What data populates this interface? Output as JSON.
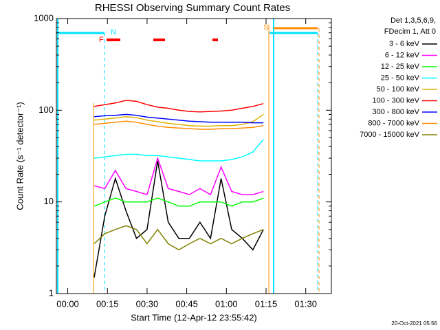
{
  "chart_data": {
    "type": "line",
    "title": "RHESSI Observing Summary Count Rates",
    "x_label": "Start Time (12-Apr-12 23:55:42)",
    "y_label": "Count Rate (s⁻¹ detector⁻¹)",
    "legend_header": [
      "Det 1,3,5,6,9,",
      "FDecim 1, Att 0"
    ],
    "flag_labels": [
      "N",
      "F",
      "S"
    ],
    "timestamp": "20-Oct-2021 05:56",
    "log_y": true,
    "legend": "right",
    "xlim": [
      -4.3,
      99.7
    ],
    "xticks": [
      {
        "value": 0,
        "label": "00:00"
      },
      {
        "value": 15,
        "label": "00:15"
      },
      {
        "value": 30,
        "label": "00:30"
      },
      {
        "value": 45,
        "label": "00:45"
      },
      {
        "value": 60,
        "label": "01:00"
      },
      {
        "value": 75,
        "label": "01:15"
      },
      {
        "value": 90,
        "label": "01:30"
      }
    ],
    "ylim": [
      1,
      1000
    ],
    "yticks": [
      1,
      10,
      100,
      1000
    ],
    "x": [
      10,
      14,
      18,
      22,
      26,
      30,
      34,
      38,
      42,
      46,
      50,
      54,
      58,
      62,
      66,
      70,
      74
    ],
    "series": [
      {
        "name": "3 - 6 keV",
        "color": "#000000",
        "values": [
          1.5,
          7,
          18,
          8,
          4,
          5,
          28,
          6,
          4,
          4,
          6,
          4,
          18,
          5,
          4,
          3,
          5
        ]
      },
      {
        "name": "6 - 12 keV",
        "color": "#ff00ff",
        "values": [
          15,
          14,
          22,
          14,
          13,
          12,
          30,
          14,
          13,
          12,
          14,
          12,
          24,
          13,
          12,
          12,
          13
        ]
      },
      {
        "name": "12 - 25 keV",
        "color": "#00ff00",
        "values": [
          9,
          10,
          11,
          10,
          10,
          10,
          11,
          10,
          9,
          9,
          10,
          10,
          10,
          9,
          10,
          10,
          11
        ]
      },
      {
        "name": "25 - 50 keV",
        "color": "#00ffff",
        "values": [
          30,
          31,
          32,
          33,
          33,
          32,
          32,
          31,
          30,
          29,
          28,
          28,
          28,
          29,
          31,
          35,
          48
        ]
      },
      {
        "name": "50 - 100 keV",
        "color": "#e0b000",
        "values": [
          78,
          80,
          82,
          85,
          83,
          78,
          75,
          72,
          70,
          68,
          67,
          67,
          68,
          68,
          70,
          75,
          90
        ]
      },
      {
        "name": "100 - 300 keV",
        "color": "#ff0000",
        "values": [
          110,
          115,
          120,
          128,
          125,
          115,
          108,
          105,
          100,
          97,
          96,
          97,
          98,
          100,
          105,
          110,
          118
        ]
      },
      {
        "name": "300 - 800 keV",
        "color": "#0000ff",
        "values": [
          85,
          87,
          88,
          90,
          88,
          84,
          82,
          80,
          78,
          76,
          75,
          74,
          74,
          74,
          74,
          73,
          73
        ]
      },
      {
        "name": "800 - 7000 keV",
        "color": "#ff8c00",
        "values": [
          70,
          72,
          74,
          76,
          74,
          70,
          67,
          65,
          64,
          63,
          62,
          62,
          63,
          63,
          64,
          65,
          68
        ]
      },
      {
        "name": "7000 - 15000 keV",
        "color": "#808000",
        "values": [
          3.5,
          4.5,
          5,
          5.5,
          5,
          3.5,
          5,
          3.5,
          3,
          3.5,
          4,
          3.5,
          4,
          3.5,
          4,
          4.5,
          5
        ]
      }
    ]
  }
}
